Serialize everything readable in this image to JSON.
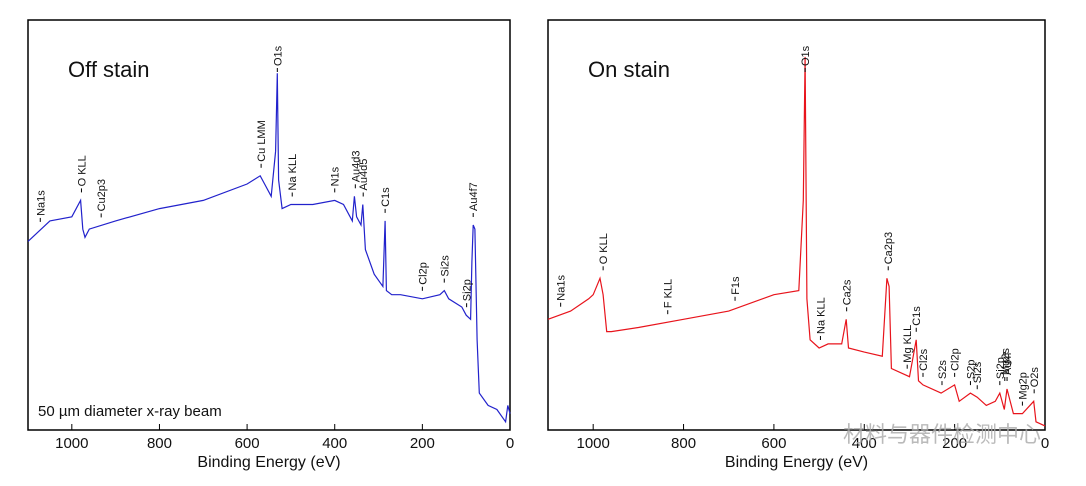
{
  "chart_data": [
    {
      "type": "line",
      "title": "Off stain",
      "annotation": "50 µm diameter x-ray beam",
      "x_label": "Binding Energy (eV)",
      "xlim": [
        1100,
        0
      ],
      "xticks": [
        1000,
        800,
        600,
        400,
        200,
        0
      ],
      "ylim": [
        0,
        100
      ],
      "series": [
        {
          "color": "#2222cc",
          "x": [
            1100,
            1050,
            1000,
            980,
            975,
            970,
            960,
            900,
            800,
            700,
            600,
            570,
            560,
            545,
            535,
            531,
            528,
            520,
            500,
            450,
            400,
            380,
            360,
            355,
            350,
            340,
            336,
            330,
            310,
            290,
            285,
            282,
            270,
            250,
            200,
            160,
            150,
            140,
            110,
            100,
            90,
            87,
            84,
            80,
            75,
            70,
            50,
            30,
            10,
            5,
            0
          ],
          "values": [
            46,
            51,
            52,
            56,
            49,
            47,
            49,
            51,
            54,
            56,
            60,
            62,
            60,
            57,
            68,
            87,
            61,
            54,
            55,
            55,
            56,
            55,
            51,
            57,
            52,
            50,
            55,
            44,
            38,
            35,
            51,
            34,
            33,
            33,
            32,
            33,
            34,
            32,
            30,
            28,
            27,
            41,
            50,
            49,
            22,
            9,
            6,
            5,
            2,
            6,
            4
          ]
        }
      ],
      "peaks": [
        {
          "text": "Na1s",
          "x": 1072
        },
        {
          "text": "O KLL",
          "x": 978
        },
        {
          "text": "Cu2p3",
          "x": 933
        },
        {
          "text": "Cu LMM",
          "x": 568
        },
        {
          "text": "O1s",
          "x": 531
        },
        {
          "text": "Na KLL",
          "x": 497
        },
        {
          "text": "N1s",
          "x": 400
        },
        {
          "text": "Au4d3",
          "x": 353
        },
        {
          "text": "Au4d5",
          "x": 335
        },
        {
          "text": "C1s",
          "x": 285
        },
        {
          "text": "Cl2p",
          "x": 200
        },
        {
          "text": "Si2s",
          "x": 150
        },
        {
          "text": "Si2p",
          "x": 99
        },
        {
          "text": "Au4f7",
          "x": 84
        }
      ]
    },
    {
      "type": "line",
      "title": "On stain",
      "x_label": "Binding Energy (eV)",
      "watermark": "材料与器件检测中心",
      "xlim": [
        1100,
        0
      ],
      "xticks": [
        1000,
        800,
        600,
        400,
        200,
        0
      ],
      "ylim": [
        0,
        100
      ],
      "series": [
        {
          "color": "#e8141c",
          "x": [
            1100,
            1050,
            1010,
            1000,
            985,
            978,
            970,
            960,
            900,
            800,
            700,
            600,
            545,
            535,
            531,
            527,
            520,
            500,
            480,
            450,
            440,
            435,
            400,
            360,
            350,
            345,
            340,
            300,
            285,
            280,
            270,
            230,
            200,
            190,
            165,
            150,
            130,
            110,
            100,
            90,
            84,
            70,
            50,
            25,
            20,
            0
          ],
          "values": [
            27,
            29,
            32,
            33,
            37,
            33,
            24,
            24,
            25,
            27,
            29,
            33,
            34,
            56,
            91,
            32,
            22,
            20,
            21,
            21,
            27,
            20,
            19,
            18,
            37,
            35,
            15,
            13,
            22,
            12,
            11,
            9,
            11,
            7,
            9,
            8,
            6,
            7,
            9,
            5,
            10,
            4,
            4,
            7,
            2,
            1
          ]
        }
      ],
      "peaks": [
        {
          "text": "Na1s",
          "x": 1072
        },
        {
          "text": "O KLL",
          "x": 978
        },
        {
          "text": "F KLL",
          "x": 835
        },
        {
          "text": "F1s",
          "x": 686
        },
        {
          "text": "O1s",
          "x": 531
        },
        {
          "text": "Na KLL",
          "x": 497
        },
        {
          "text": "Ca2s",
          "x": 439
        },
        {
          "text": "Ca2p3",
          "x": 347
        },
        {
          "text": "Mg KLL",
          "x": 305
        },
        {
          "text": "C1s",
          "x": 285
        },
        {
          "text": "Cl2s",
          "x": 270
        },
        {
          "text": "S2s",
          "x": 228
        },
        {
          "text": "Cl2p",
          "x": 200
        },
        {
          "text": "S2p",
          "x": 165
        },
        {
          "text": "Si2s",
          "x": 150
        },
        {
          "text": "Si2p",
          "x": 100
        },
        {
          "text": "Mg2s",
          "x": 89
        },
        {
          "text": "Au4f",
          "x": 84
        },
        {
          "text": "Mg2p",
          "x": 50
        },
        {
          "text": "O2s",
          "x": 24
        }
      ]
    }
  ]
}
